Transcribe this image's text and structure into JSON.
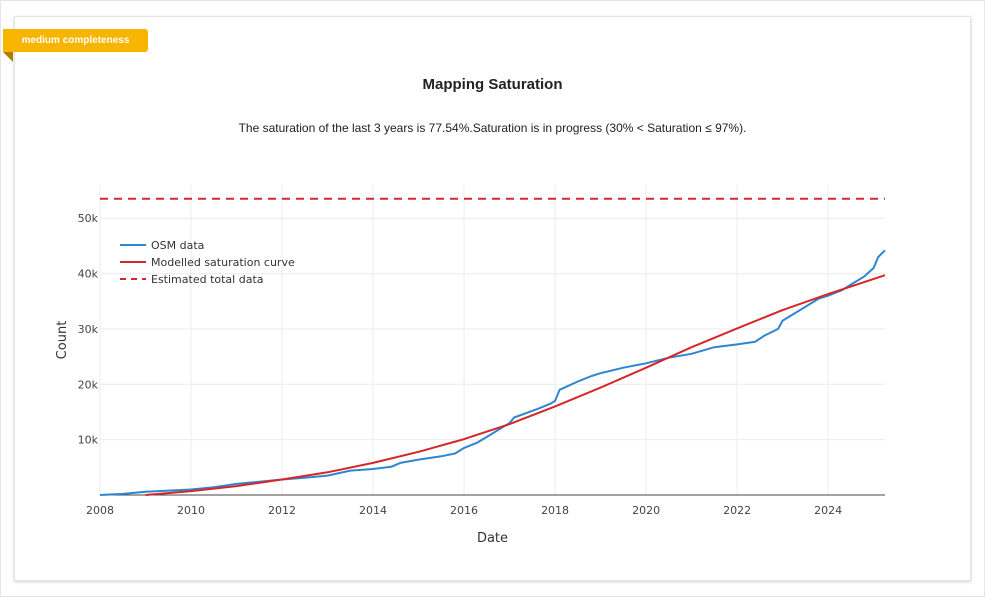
{
  "badge": {
    "label": "medium completeness"
  },
  "header": {
    "title": "Mapping Saturation",
    "subtitle": "The saturation of the last 3 years is 77.54%.Saturation is in progress (30% < Saturation ≤ 97%)."
  },
  "colors": {
    "badge": "#f7b500",
    "osm": "#2f86d0",
    "model": "#d62728",
    "estimate": "#d62728"
  },
  "chart_data": {
    "type": "line",
    "title": "Mapping Saturation",
    "xlabel": "Date",
    "ylabel": "Count",
    "xlim": [
      2008,
      2025.25
    ],
    "ylim": [
      0,
      56000
    ],
    "x_ticks": [
      2008,
      2010,
      2012,
      2014,
      2016,
      2018,
      2020,
      2022,
      2024
    ],
    "y_ticks": [
      10000,
      20000,
      30000,
      40000,
      50000
    ],
    "y_tick_labels": [
      "10k",
      "20k",
      "30k",
      "40k",
      "50k"
    ],
    "grid": true,
    "legend_position": "top-left",
    "series": [
      {
        "name": "OSM data",
        "style": "solid",
        "x": [
          2008.0,
          2008.5,
          2009.0,
          2009.5,
          2010.0,
          2010.5,
          2011.0,
          2011.5,
          2012.0,
          2012.5,
          2013.0,
          2013.5,
          2014.0,
          2014.4,
          2014.6,
          2015.0,
          2015.5,
          2015.8,
          2016.0,
          2016.3,
          2016.6,
          2016.9,
          2017.0,
          2017.1,
          2017.3,
          2017.6,
          2017.9,
          2018.0,
          2018.1,
          2018.5,
          2018.8,
          2019.0,
          2019.5,
          2020.0,
          2020.5,
          2021.0,
          2021.5,
          2022.0,
          2022.4,
          2022.6,
          2022.9,
          2023.0,
          2023.2,
          2023.4,
          2023.6,
          2023.8,
          2024.0,
          2024.3,
          2024.5,
          2024.8,
          2025.0,
          2025.1,
          2025.25
        ],
        "values": [
          0,
          200,
          600,
          800,
          1000,
          1400,
          2000,
          2400,
          2800,
          3100,
          3500,
          4400,
          4700,
          5100,
          5800,
          6400,
          7000,
          7500,
          8500,
          9500,
          11000,
          12500,
          13000,
          14000,
          14600,
          15500,
          16500,
          17000,
          19000,
          20500,
          21500,
          22000,
          23000,
          23800,
          24800,
          25500,
          26700,
          27200,
          27700,
          28800,
          30000,
          31500,
          32500,
          33500,
          34500,
          35500,
          36000,
          37000,
          38000,
          39500,
          41000,
          43000,
          44200
        ]
      },
      {
        "name": "Modelled saturation curve",
        "style": "solid",
        "x": [
          2009.0,
          2010.0,
          2011.0,
          2012.0,
          2013.0,
          2014.0,
          2015.0,
          2016.0,
          2017.0,
          2018.0,
          2019.0,
          2020.0,
          2021.0,
          2022.0,
          2023.0,
          2024.0,
          2025.25
        ],
        "values": [
          0,
          700,
          1600,
          2800,
          4100,
          5800,
          7800,
          10100,
          12800,
          16000,
          19400,
          23000,
          26700,
          30100,
          33400,
          36300,
          39700
        ]
      },
      {
        "name": "Estimated total data",
        "style": "dashed",
        "x": [
          2008.0,
          2025.25
        ],
        "values": [
          53500,
          53500
        ]
      }
    ]
  }
}
